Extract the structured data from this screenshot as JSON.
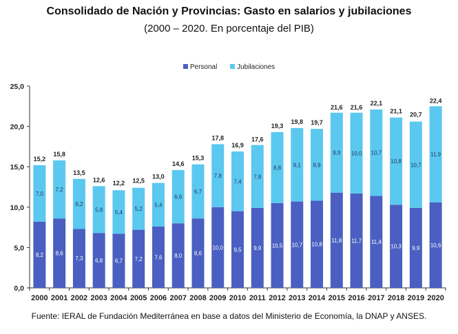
{
  "chart_data": {
    "type": "bar",
    "stacked": true,
    "title": "Consolidado de Nación y Provincias: Gasto en salarios y jubilaciones",
    "subtitle": "(2000 – 2020. En porcentaje del PIB)",
    "xlabel": "",
    "ylabel": "",
    "ylim": [
      0,
      25
    ],
    "yticks": [
      "0,0",
      "5,0",
      "10,0",
      "15,0",
      "20,0",
      "25,0"
    ],
    "ytick_values": [
      0,
      5,
      10,
      15,
      20,
      25
    ],
    "legend_position": "top-center",
    "grid": false,
    "categories": [
      "2000",
      "2001",
      "2002",
      "2003",
      "2004",
      "2005",
      "2006",
      "2007",
      "2008",
      "2009",
      "2010",
      "2011",
      "2012",
      "2013",
      "2014",
      "2015",
      "2016",
      "2017",
      "2018",
      "2019",
      "2020"
    ],
    "series": [
      {
        "name": "Personal",
        "color": "#4a5fc1",
        "values": [
          8.2,
          8.6,
          7.3,
          6.8,
          6.7,
          7.2,
          7.6,
          8.0,
          8.6,
          10.0,
          9.5,
          9.9,
          10.5,
          10.7,
          10.8,
          11.8,
          11.7,
          11.4,
          10.3,
          9.9,
          10.6
        ],
        "labels": [
          "8,2",
          "8,6",
          "7,3",
          "6,8",
          "6,7",
          "7,2",
          "7,6",
          "8,0",
          "8,6",
          "10,0",
          "9,5",
          "9,9",
          "10,5",
          "10,7",
          "10,8",
          "11,8",
          "11,7",
          "11,4",
          "10,3",
          "9,9",
          "10,6"
        ]
      },
      {
        "name": "Jubilaciones",
        "color": "#5bc8f0",
        "values": [
          7.0,
          7.2,
          6.2,
          5.8,
          5.4,
          5.2,
          5.4,
          6.6,
          6.7,
          7.8,
          7.4,
          7.8,
          8.8,
          9.1,
          8.9,
          9.9,
          10.0,
          10.7,
          10.8,
          10.7,
          11.9
        ],
        "labels": [
          "7,0",
          "7,2",
          "6,2",
          "5,8",
          "5,4",
          "5,2",
          "5,4",
          "6,6",
          "6,7",
          "7,8",
          "7,4",
          "7,8",
          "8,8",
          "9,1",
          "8,9",
          "9,9",
          "10,0",
          "10,7",
          "10,8",
          "10,7",
          "11,9"
        ]
      }
    ],
    "totals": [
      15.2,
      15.8,
      13.5,
      12.6,
      12.2,
      12.5,
      13.0,
      14.6,
      15.3,
      17.8,
      16.9,
      17.6,
      19.3,
      19.8,
      19.7,
      21.6,
      21.6,
      22.1,
      21.1,
      20.7,
      22.4
    ],
    "total_labels": [
      "15,2",
      "15,8",
      "13,5",
      "12,6",
      "12,2",
      "12,5",
      "13,0",
      "14,6",
      "15,3",
      "17,8",
      "16,9",
      "17,6",
      "19,3",
      "19,8",
      "19,7",
      "21,6",
      "21,6",
      "22,1",
      "21,1",
      "20,7",
      "22,4"
    ]
  },
  "source": "Fuente: IERAL de Fundación Mediterránea en base a datos del Ministerio de Economía, la DNAP y ANSES."
}
